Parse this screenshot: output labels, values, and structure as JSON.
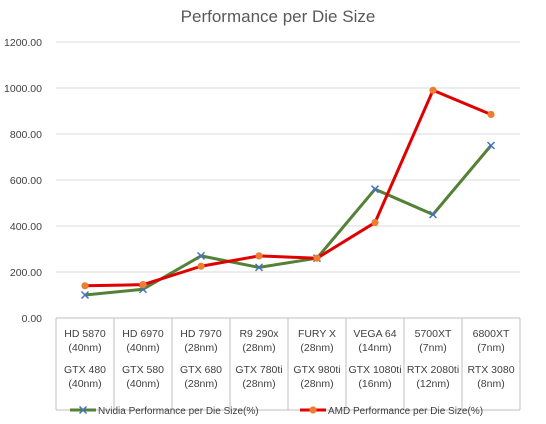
{
  "chart_data": {
    "type": "line",
    "title": "Performance per Die Size",
    "xlabel": "",
    "ylabel": "",
    "ylim": [
      0,
      1200
    ],
    "yticks": [
      "0.00",
      "200.00",
      "400.00",
      "600.00",
      "800.00",
      "1000.00",
      "1200.00"
    ],
    "grid": true,
    "legend_position": "bottom",
    "categories": [
      {
        "amd": "HD 5870",
        "amd_node": "(40nm)",
        "nvidia": "GTX 480",
        "nvidia_node": "(40nm)"
      },
      {
        "amd": "HD 6970",
        "amd_node": "(40nm)",
        "nvidia": "GTX 580",
        "nvidia_node": "(40nm)"
      },
      {
        "amd": "HD 7970",
        "amd_node": "(28nm)",
        "nvidia": "GTX 680",
        "nvidia_node": "(28nm)"
      },
      {
        "amd": "R9 290x",
        "amd_node": "(28nm)",
        "nvidia": "GTX 780ti",
        "nvidia_node": "(28nm)"
      },
      {
        "amd": "FURY X",
        "amd_node": "(28nm)",
        "nvidia": "GTX 980ti",
        "nvidia_node": "(28nm)"
      },
      {
        "amd": "VEGA 64",
        "amd_node": "(14nm)",
        "nvidia": "GTX 1080ti",
        "nvidia_node": "(16nm)"
      },
      {
        "amd": "5700XT",
        "amd_node": "(7nm)",
        "nvidia": "RTX 2080ti",
        "nvidia_node": "(12nm)"
      },
      {
        "amd": "6800XT",
        "amd_node": "(7nm)",
        "nvidia": "RTX 3080",
        "nvidia_node": "(8nm)"
      }
    ],
    "series": [
      {
        "name": "Nvidia Performance per Die Size(%)",
        "color": "#538135",
        "marker_color": "#4472c4",
        "marker": "x-mark",
        "values": [
          100,
          125,
          270,
          220,
          260,
          560,
          450,
          750
        ]
      },
      {
        "name": "AMD Performance per Die Size(%)",
        "color": "#e00000",
        "marker_color": "#ed7d31",
        "marker": "circle",
        "values": [
          140,
          145,
          225,
          270,
          260,
          415,
          990,
          885
        ]
      }
    ]
  }
}
